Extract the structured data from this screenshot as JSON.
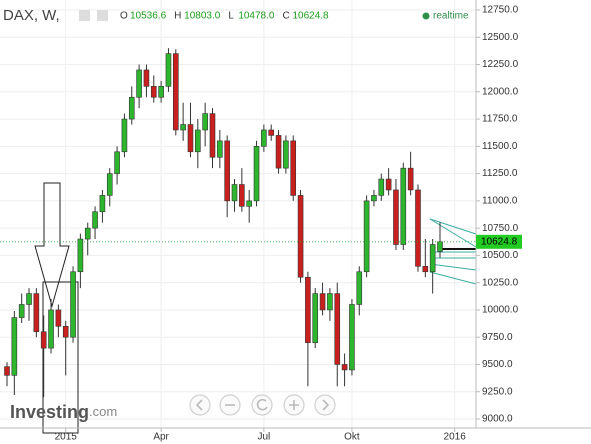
{
  "chart_data": {
    "type": "candlestick",
    "header": {
      "symbol": "DAX, W,",
      "fields": [
        {
          "name": "O",
          "label": "10536.6"
        },
        {
          "name": "H",
          "label": "10803.0"
        },
        {
          "name": "L",
          "label": "10478.0"
        },
        {
          "name": "C",
          "label": "10624.8"
        }
      ],
      "feed": "realtime"
    },
    "logo": {
      "brand": "Investing",
      "suffix": ".com"
    },
    "categories": [
      null,
      null,
      null,
      null,
      null,
      null,
      null,
      null,
      "2015",
      null,
      null,
      null,
      null,
      null,
      null,
      null,
      null,
      null,
      null,
      null,
      null,
      "Apr",
      null,
      null,
      null,
      null,
      null,
      null,
      null,
      null,
      null,
      null,
      null,
      null,
      null,
      "Jul",
      null,
      null,
      null,
      null,
      null,
      null,
      null,
      null,
      null,
      null,
      null,
      "Okt",
      null,
      null,
      null,
      null,
      null,
      null,
      null,
      null,
      null,
      null,
      null,
      null,
      null,
      "2016"
    ],
    "ohlc": {
      "open": [
        9480,
        9400,
        9930,
        10050,
        10150,
        9800,
        9650,
        10000,
        9850,
        9750,
        10350,
        10650,
        10750,
        10900,
        11050,
        11250,
        11450,
        11750,
        11950,
        12200,
        12050,
        11950,
        12050,
        12350,
        11650,
        11700,
        11450,
        11650,
        11800,
        11400,
        11550,
        11000,
        11150,
        10950,
        11000,
        11500,
        11650,
        11600,
        11300,
        11550,
        11050,
        10300,
        9700,
        10150,
        10000,
        10150,
        9500,
        9450,
        10050,
        10350,
        11000,
        11050,
        11200,
        11100,
        10600,
        11300,
        11100,
        10400,
        10350,
        10536.6,
        null,
        null
      ],
      "high": [
        9520,
        9990,
        10150,
        10200,
        10200,
        9950,
        10100,
        10050,
        9900,
        10400,
        10700,
        10800,
        10950,
        11100,
        11300,
        11500,
        11800,
        12050,
        12250,
        12250,
        12150,
        12100,
        12400,
        12390,
        11900,
        11900,
        11750,
        11900,
        11850,
        11650,
        11600,
        11200,
        11300,
        11100,
        11550,
        11700,
        11700,
        11650,
        11600,
        11600,
        11100,
        10350,
        10200,
        10250,
        10200,
        10250,
        9600,
        10100,
        10400,
        11050,
        11100,
        11250,
        11300,
        11200,
        11350,
        11450,
        11150,
        10650,
        10650,
        10803.0,
        null,
        null
      ],
      "low": [
        9300,
        9220,
        9880,
        9900,
        9750,
        9200,
        9600,
        9750,
        9400,
        9700,
        10200,
        10500,
        10650,
        10800,
        10950,
        11150,
        11400,
        11700,
        11850,
        11950,
        11900,
        11900,
        12000,
        11600,
        11550,
        11400,
        11300,
        11500,
        11300,
        11300,
        10850,
        10900,
        10900,
        10800,
        10950,
        11450,
        11550,
        11250,
        11250,
        11000,
        10250,
        9300,
        9650,
        9950,
        9900,
        9300,
        9300,
        9400,
        9950,
        10300,
        10950,
        11000,
        11050,
        10550,
        10550,
        11050,
        10350,
        10300,
        10150,
        10478.0,
        null,
        null
      ],
      "close": [
        9400,
        9930,
        10050,
        10150,
        9800,
        9650,
        10000,
        9850,
        9750,
        10350,
        10650,
        10750,
        10900,
        11050,
        11250,
        11450,
        11750,
        11950,
        12200,
        12050,
        11950,
        12050,
        12350,
        11650,
        11700,
        11450,
        11650,
        11800,
        11400,
        11550,
        11000,
        11150,
        10950,
        11000,
        11500,
        11650,
        11600,
        11300,
        11550,
        11050,
        10300,
        9700,
        10150,
        10000,
        10150,
        9500,
        9450,
        10050,
        10350,
        11000,
        11050,
        11200,
        11100,
        10600,
        11300,
        11100,
        10400,
        10350,
        10600,
        10624.8,
        null,
        null
      ],
      "up_color": "#2db52d",
      "down_color": "#c8201e"
    },
    "ylim": [
      9000,
      12750
    ],
    "yticks": [
      {
        "value": 9000,
        "label": "9000.0"
      },
      {
        "value": 9250,
        "label": "9250.0"
      },
      {
        "value": 9500,
        "label": "9500.0"
      },
      {
        "value": 9750,
        "label": "9750.0"
      },
      {
        "value": 10000,
        "label": "10000.0"
      },
      {
        "value": 10250,
        "label": "10250.0"
      },
      {
        "value": 10500,
        "label": "10500.0"
      },
      {
        "value": 10750,
        "label": "10750.0"
      },
      {
        "value": 11000,
        "label": "11000.0"
      },
      {
        "value": 11250,
        "label": "11250.0"
      },
      {
        "value": 11500,
        "label": "11500.0"
      },
      {
        "value": 11750,
        "label": "11750.0"
      },
      {
        "value": 12000,
        "label": "12000.0"
      },
      {
        "value": 12250,
        "label": "12250.0"
      },
      {
        "value": 12500,
        "label": "12500.0"
      },
      {
        "value": 12750,
        "label": "12750.0"
      }
    ],
    "grid": true
  }
}
